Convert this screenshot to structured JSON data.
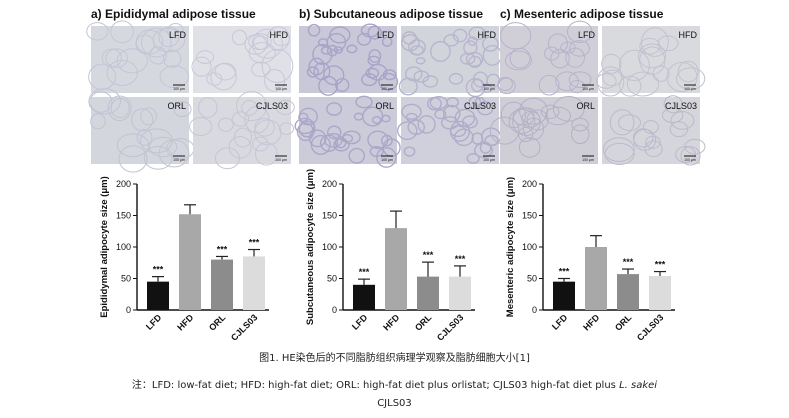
{
  "panels": [
    {
      "title": "a) Epididymal adipose tissue",
      "tiles": [
        {
          "label": "LFD",
          "scale": "100 μm",
          "bg": "#d6d8df",
          "cell": "#c6c4d6"
        },
        {
          "label": "HFD",
          "scale": "100 μm",
          "bg": "#dfe1e6",
          "cell": "#c8c7d8"
        },
        {
          "label": "ORL",
          "scale": "100 μm",
          "bg": "#d3d6dd",
          "cell": "#c3c2d3"
        },
        {
          "label": "CJLS03",
          "scale": "100 μm",
          "bg": "#d8dae0",
          "cell": "#c6c5d6"
        }
      ]
    },
    {
      "title": "b) Subcutaneous adipose tissue",
      "tiles": [
        {
          "label": "LFD",
          "scale": "100 μm",
          "bg": "#c9c8d8",
          "cell": "#a9a3c8"
        },
        {
          "label": "HFD",
          "scale": "100 μm",
          "bg": "#d2d4dc",
          "cell": "#b8b5cd"
        },
        {
          "label": "ORL",
          "scale": "100 μm",
          "bg": "#cbcbda",
          "cell": "#aca6c8"
        },
        {
          "label": "CJLS03",
          "scale": "100 μm",
          "bg": "#cfd0db",
          "cell": "#b1acca"
        }
      ]
    },
    {
      "title": "c) Mesenteric adipose tissue",
      "tiles": [
        {
          "label": "LFD",
          "scale": "100 μm",
          "bg": "#d0cfd8",
          "cell": "#b7b2ca"
        },
        {
          "label": "HFD",
          "scale": "100 μm",
          "bg": "#d9dade",
          "cell": "#c3c1d0"
        },
        {
          "label": "ORL",
          "scale": "100 μm",
          "bg": "#cfced7",
          "cell": "#b6b0c7"
        },
        {
          "label": "CJLS03",
          "scale": "100 μm",
          "bg": "#d5d5dc",
          "cell": "#bdb9cc"
        }
      ]
    }
  ],
  "bar_colors": [
    "#111111",
    "#a8a8a8",
    "#8c8c8c",
    "#dcdcdc"
  ],
  "chart_data": [
    {
      "type": "bar",
      "title": "",
      "xlabel": "",
      "ylabel": "Epididymal adipocyte size (μm)",
      "categories": [
        "LFD",
        "HFD",
        "ORL",
        "CJLS03"
      ],
      "values": [
        45,
        152,
        80,
        85
      ],
      "errors": [
        8,
        15,
        5,
        11
      ],
      "annotations": [
        "***",
        "",
        "***",
        "***"
      ],
      "ylim": [
        0,
        200
      ],
      "yticks": [
        "0",
        "50",
        "100",
        "150",
        "200"
      ]
    },
    {
      "type": "bar",
      "title": "",
      "xlabel": "",
      "ylabel": "Subcutaneous adipocyte size (μm)",
      "categories": [
        "LFD",
        "HFD",
        "ORL",
        "CJLS03"
      ],
      "values": [
        40,
        130,
        53,
        53
      ],
      "errors": [
        9,
        27,
        23,
        17
      ],
      "annotations": [
        "***",
        "",
        "***",
        "***"
      ],
      "ylim": [
        0,
        200
      ],
      "yticks": [
        "0",
        "50",
        "100",
        "150",
        "200"
      ]
    },
    {
      "type": "bar",
      "title": "",
      "xlabel": "",
      "ylabel": "Mesenteric adipocyte size (μm)",
      "categories": [
        "LFD",
        "HFD",
        "ORL",
        "CJLS03"
      ],
      "values": [
        45,
        100,
        57,
        54
      ],
      "errors": [
        5,
        18,
        8,
        7
      ],
      "annotations": [
        "***",
        "",
        "***",
        "***"
      ],
      "ylim": [
        0,
        200
      ],
      "yticks": [
        "0",
        "50",
        "100",
        "150",
        "200"
      ]
    }
  ],
  "caption": "图1. HE染色后的不同脂肪组织病理学观察及脂肪细胞大小[1]",
  "note": {
    "prefix": "注：LFD: low-fat diet; HFD: high-fat diet; ORL: high-fat diet plus orlistat; CJLS03 high-fat diet plus ",
    "italic": "L. sakei",
    "line2": "CJLS03"
  }
}
